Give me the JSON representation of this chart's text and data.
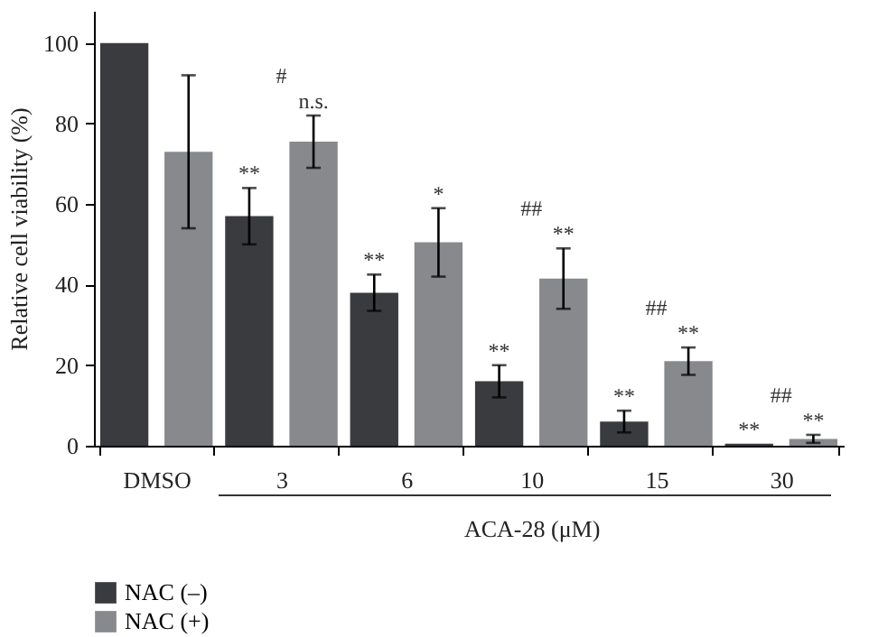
{
  "chart_data": {
    "type": "bar",
    "ylabel": "Relative cell viability (%)",
    "xlabel": "ACA-28 (μM)",
    "categories": [
      "DMSO",
      "3",
      "6",
      "10",
      "15",
      "30"
    ],
    "series": [
      {
        "name": "NAC (–)",
        "color": "#3a3b3f",
        "values": [
          100,
          57,
          38,
          16,
          6,
          0.5
        ],
        "errors": [
          null,
          7,
          4.5,
          4,
          2.7,
          null
        ]
      },
      {
        "name": "NAC (+)",
        "color": "#87898c",
        "values": [
          73,
          75.5,
          50.5,
          41.5,
          21,
          1.7
        ],
        "errors": [
          19,
          6.5,
          8.5,
          7.5,
          3.4,
          1
        ]
      }
    ],
    "ylim": [
      0,
      108
    ],
    "yticks": [
      0,
      20,
      40,
      60,
      80,
      100
    ],
    "legend": "bottom left",
    "annotations": [
      {
        "text": "n.s.",
        "x": "3",
        "y": 75.5
      },
      {
        "text": "#",
        "x": "3",
        "y": 75.5
      },
      {
        "text": "**",
        "x": "3",
        "y": 57
      },
      {
        "text": "**",
        "x": "6",
        "y": 38
      },
      {
        "text": "*",
        "x": "6",
        "y": 50.5
      },
      {
        "text": "**",
        "x": "10",
        "y": 16
      },
      {
        "text": "**",
        "x": "10",
        "y": 41.5
      },
      {
        "text": "##",
        "x": "10",
        "y": 41.5
      },
      {
        "text": "**",
        "x": "15",
        "y": 6
      },
      {
        "text": "**",
        "x": "15",
        "y": 21
      },
      {
        "text": "##",
        "x": "15",
        "y": 21
      },
      {
        "text": "**",
        "x": "30",
        "y": 0.5
      },
      {
        "text": "**",
        "x": "30",
        "y": 1.7
      },
      {
        "text": "##",
        "x": "30",
        "y": 1.7
      }
    ]
  }
}
